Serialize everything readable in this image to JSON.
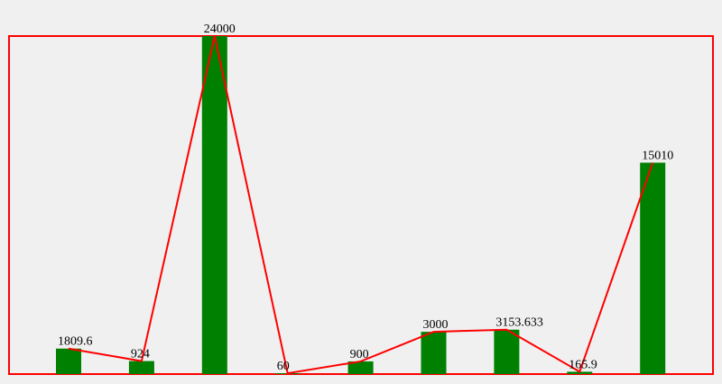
{
  "chart_data": {
    "type": "bar",
    "values": [
      1809.6,
      924,
      24000,
      60,
      900,
      3000,
      3153.633,
      165.9,
      15010
    ],
    "color": "#008000",
    "line": true,
    "line_color": "#ff0000",
    "frame_color": "#ff0000"
  }
}
